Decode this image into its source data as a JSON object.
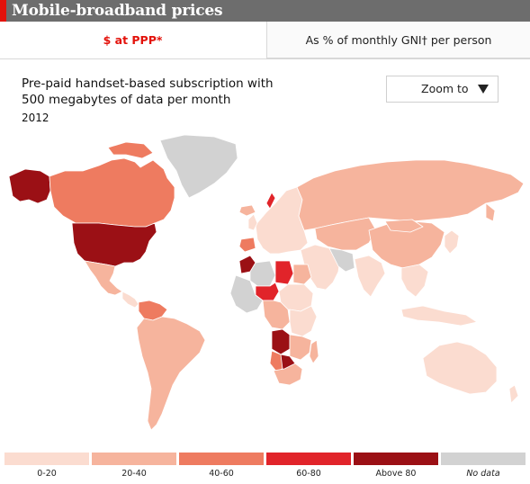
{
  "header": {
    "title": "Mobile-broadband prices"
  },
  "tabs": [
    {
      "label": "$ at PPP*",
      "active": true
    },
    {
      "label": "As % of monthly GNI† per person",
      "active": false
    }
  ],
  "description": {
    "line1": "Pre-paid handset-based subscription with",
    "line2": "500 megabytes of data per month",
    "year": "2012"
  },
  "zoom": {
    "label": "Zoom to",
    "icon": "triangle-down-icon"
  },
  "colors": {
    "accent": "#e3120b",
    "bin_0_20": "#fbdcd0",
    "bin_20_40": "#f6b49d",
    "bin_40_60": "#ee7b60",
    "bin_60_80": "#e1242a",
    "bin_above_80": "#9b1015",
    "no_data": "#d2d2d2"
  },
  "legend": [
    {
      "label": "0-20",
      "color_key": "bin_0_20",
      "italic": false
    },
    {
      "label": "20-40",
      "color_key": "bin_20_40",
      "italic": false
    },
    {
      "label": "40-60",
      "color_key": "bin_40_60",
      "italic": false
    },
    {
      "label": "60-80",
      "color_key": "bin_60_80",
      "italic": false
    },
    {
      "label": "Above 80",
      "color_key": "bin_above_80",
      "italic": false
    },
    {
      "label": "No data",
      "color_key": "no_data",
      "italic": true
    }
  ]
}
